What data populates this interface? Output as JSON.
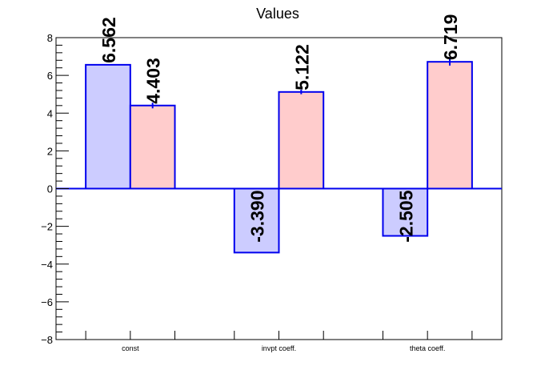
{
  "chart_data": {
    "type": "bar",
    "title": "Values",
    "categories": [
      "const",
      "invpt coeff.",
      "theta coeff."
    ],
    "series": [
      {
        "values": [
          6.562,
          -3.39,
          -2.505
        ],
        "labels": [
          "6.562",
          "-3.390",
          "-2.505"
        ],
        "errors": [
          0,
          0,
          0
        ],
        "color": "#ccccff"
      },
      {
        "values": [
          4.403,
          5.122,
          6.719
        ],
        "labels": [
          "4.403",
          "5.122",
          "6.719"
        ],
        "errors": [
          0.15,
          0.12,
          0.2
        ],
        "color": "#ffcccc"
      }
    ],
    "edge_color": "#0000ee",
    "ylim": [
      -8,
      8
    ],
    "yticks": [
      -8,
      -6,
      -4,
      -2,
      0,
      2,
      4,
      6,
      8
    ],
    "ytick_labels": [
      "−8",
      "−6",
      "−4",
      "−2",
      "0",
      "2",
      "4",
      "6",
      "8"
    ],
    "xlabel": "",
    "ylabel": "",
    "grid": false,
    "legend": "none"
  }
}
